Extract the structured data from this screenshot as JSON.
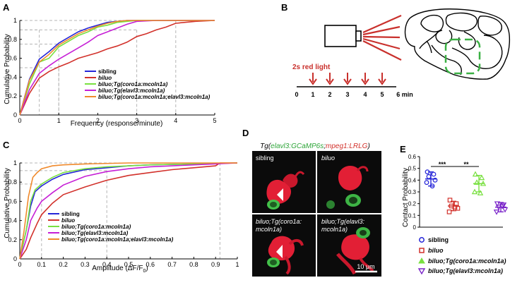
{
  "panels": {
    "A": "A",
    "B": "B",
    "C": "C",
    "D": "D",
    "E": "E"
  },
  "colors": {
    "sibling": "#2525d8",
    "biluo": "#d2312b",
    "coro": "#79e040",
    "elavl": "#c61fd6",
    "both": "#f08a2c",
    "violet": "#7a24c9"
  },
  "panelA": {
    "ylabel": "Cumulative Probability",
    "xlabel": "Frequency (response/minute)",
    "xticks": [
      "0",
      "1",
      "2",
      "3",
      "4",
      "5"
    ],
    "yticks": [
      "0",
      "0.2",
      "0.4",
      "0.6",
      "0.8",
      "1"
    ],
    "legend": [
      "sibling",
      "biluo",
      "biluo;Tg(coro1a:mcoln1a)",
      "biluo;Tg(elavl3:mcoln1a)",
      "biluo;Tg(coro1a:mcoln1a;elavl3:mcoln1a)"
    ]
  },
  "panelB": {
    "stim_label": "2s red light",
    "timeline": [
      "0",
      "1",
      "2",
      "3",
      "4",
      "5",
      "6 min"
    ]
  },
  "panelC": {
    "ylabel": "Cumulative Probability",
    "xlabel": "Amplitude (ΔF/F",
    "xlabel_sub": "0",
    "xlabel_end": ")",
    "xticks": [
      "0",
      "0.1",
      "0.2",
      "0.3",
      "0.4",
      "0.5",
      "0.6",
      "0.7",
      "0.8",
      "0.9",
      "1"
    ],
    "yticks": [
      "0",
      "0.2",
      "0.4",
      "0.6",
      "0.8",
      "1"
    ],
    "legend": [
      "sibling",
      "biluo",
      "biluo;Tg(coro1a:mcoln1a)",
      "biluo;Tg(elavl3:mcoln1a)",
      "biluo;Tg(coro1a:mcoln1a;elavl3:mcoln1a)"
    ]
  },
  "panelD": {
    "title_tg": "Tg(",
    "title_green": "elavl3:GCaMP6s",
    "title_sep": ";",
    "title_red": "mpeg1:LRLG",
    "title_end": ")",
    "cells": [
      "sibling",
      "biluo",
      "biluo;Tg(coro1a:\nmcoln1a)",
      "biluo;Tg(elavl3:\nmcoln1a)"
    ],
    "cell_lines": [
      [
        "sibling"
      ],
      [
        "biluo"
      ],
      [
        "biluo;Tg(coro1a:",
        "mcoln1a)"
      ],
      [
        "biluo;Tg(elavl3:",
        "mcoln1a)"
      ]
    ],
    "scalebar": "10 μm"
  },
  "panelE": {
    "ylabel": "Contact Probability",
    "yticks": [
      "0",
      "0.1",
      "0.2",
      "0.3",
      "0.4",
      "0.5",
      "0.6"
    ],
    "sig": [
      "***",
      "**"
    ],
    "legend": [
      "sibling",
      "biluo",
      "biluo;Tg(coro1a:mcoln1a)",
      "biluo;Tg(elavl3:mcoln1a)"
    ]
  },
  "chart_data": [
    {
      "type": "line",
      "title": "",
      "xlabel": "Frequency (response/minute)",
      "ylabel": "Cumulative Probability",
      "xlim": [
        0,
        5
      ],
      "ylim": [
        0,
        1
      ],
      "series": [
        {
          "name": "sibling",
          "x": [
            0,
            0.25,
            0.5,
            0.75,
            1,
            1.25,
            1.5,
            1.75,
            2,
            2.25,
            2.5,
            2.75,
            3,
            3.5,
            4,
            5
          ],
          "y": [
            0,
            0.38,
            0.59,
            0.67,
            0.76,
            0.82,
            0.88,
            0.92,
            0.95,
            0.98,
            0.99,
            1,
            1,
            1,
            1,
            1
          ]
        },
        {
          "name": "biluo",
          "x": [
            0,
            0.25,
            0.5,
            0.75,
            1,
            1.25,
            1.5,
            1.75,
            2,
            2.25,
            2.5,
            2.75,
            3,
            3.25,
            3.5,
            3.75,
            4,
            4.5,
            5
          ],
          "y": [
            0,
            0.23,
            0.39,
            0.46,
            0.51,
            0.55,
            0.6,
            0.63,
            0.66,
            0.7,
            0.73,
            0.77,
            0.83,
            0.86,
            0.9,
            0.93,
            0.97,
            0.99,
            1
          ]
        },
        {
          "name": "biluo;Tg(coro1a:mcoln1a)",
          "x": [
            0,
            0.25,
            0.5,
            0.75,
            1,
            1.25,
            1.5,
            1.75,
            2,
            2.25,
            2.5,
            2.75,
            3,
            3.5,
            5
          ],
          "y": [
            0,
            0.33,
            0.56,
            0.6,
            0.72,
            0.78,
            0.84,
            0.88,
            0.93,
            0.95,
            0.98,
            0.99,
            1,
            1,
            1
          ]
        },
        {
          "name": "biluo;Tg(elavl3:mcoln1a)",
          "x": [
            0,
            0.25,
            0.5,
            0.75,
            1,
            1.25,
            1.5,
            1.75,
            2,
            2.25,
            2.5,
            2.75,
            3,
            3.5,
            5
          ],
          "y": [
            0,
            0.27,
            0.44,
            0.52,
            0.59,
            0.65,
            0.71,
            0.77,
            0.84,
            0.88,
            0.92,
            0.96,
            0.99,
            1,
            1
          ]
        },
        {
          "name": "biluo;Tg(coro1a:mcoln1a;elavl3:mcoln1a)",
          "x": [
            0,
            0.25,
            0.5,
            0.75,
            1,
            1.25,
            1.5,
            1.75,
            2,
            2.25,
            2.5,
            2.75,
            3,
            3.5,
            5
          ],
          "y": [
            0,
            0.37,
            0.56,
            0.64,
            0.74,
            0.8,
            0.86,
            0.9,
            0.94,
            0.97,
            0.99,
            1,
            1,
            1,
            1
          ]
        }
      ]
    },
    {
      "type": "line",
      "title": "",
      "xlabel": "Amplitude (ΔF/F0)",
      "ylabel": "Cumulative Probability",
      "xlim": [
        0,
        1
      ],
      "ylim": [
        0,
        1
      ],
      "series": [
        {
          "name": "sibling",
          "x": [
            0,
            0.03,
            0.05,
            0.07,
            0.1,
            0.15,
            0.2,
            0.3,
            0.4,
            0.5,
            0.6,
            0.7,
            0.8,
            0.9,
            1
          ],
          "y": [
            0,
            0.3,
            0.55,
            0.7,
            0.76,
            0.83,
            0.88,
            0.93,
            0.95,
            0.97,
            0.98,
            0.985,
            0.99,
            0.995,
            1
          ]
        },
        {
          "name": "biluo",
          "x": [
            0,
            0.03,
            0.05,
            0.08,
            0.1,
            0.15,
            0.2,
            0.3,
            0.4,
            0.5,
            0.6,
            0.7,
            0.8,
            0.9,
            0.92,
            1
          ],
          "y": [
            0,
            0.1,
            0.22,
            0.37,
            0.46,
            0.58,
            0.67,
            0.75,
            0.82,
            0.87,
            0.9,
            0.93,
            0.95,
            0.97,
            1,
            1
          ]
        },
        {
          "name": "biluo;Tg(coro1a:mcoln1a)",
          "x": [
            0,
            0.03,
            0.05,
            0.07,
            0.1,
            0.15,
            0.2,
            0.3,
            0.4,
            0.5,
            0.6,
            0.8,
            1
          ],
          "y": [
            0,
            0.3,
            0.6,
            0.72,
            0.78,
            0.85,
            0.9,
            0.94,
            0.96,
            0.97,
            0.98,
            0.99,
            1
          ]
        },
        {
          "name": "biluo;Tg(elavl3:mcoln1a)",
          "x": [
            0,
            0.03,
            0.05,
            0.08,
            0.1,
            0.15,
            0.2,
            0.3,
            0.4,
            0.5,
            0.6,
            0.8,
            1
          ],
          "y": [
            0,
            0.2,
            0.4,
            0.53,
            0.6,
            0.69,
            0.77,
            0.86,
            0.91,
            0.94,
            0.96,
            0.98,
            1
          ]
        },
        {
          "name": "biluo;Tg(coro1a:mcoln1a;elavl3:mcoln1a)",
          "x": [
            0,
            0.02,
            0.04,
            0.06,
            0.08,
            0.1,
            0.15,
            0.2,
            0.3,
            0.5,
            0.7,
            1
          ],
          "y": [
            0,
            0.3,
            0.65,
            0.85,
            0.9,
            0.94,
            0.97,
            0.98,
            0.99,
            1,
            1,
            1
          ]
        }
      ]
    },
    {
      "type": "scatter",
      "title": "",
      "ylabel": "Contact Probability",
      "ylim": [
        0,
        0.6
      ],
      "categories": [
        "sibling",
        "biluo",
        "biluo;Tg(coro1a:mcoln1a)",
        "biluo;Tg(elavl3:mcoln1a)"
      ],
      "means": [
        0.41,
        0.18,
        0.37,
        0.17
      ],
      "sd": [
        0.06,
        0.04,
        0.07,
        0.04
      ],
      "points": [
        [
          0.47,
          0.45,
          0.43,
          0.4,
          0.38,
          0.35
        ],
        [
          0.23,
          0.2,
          0.18,
          0.16,
          0.13,
          0.17
        ],
        [
          0.45,
          0.42,
          0.38,
          0.37,
          0.3,
          0.29
        ],
        [
          0.2,
          0.19,
          0.17,
          0.15,
          0.13,
          0.18
        ]
      ]
    }
  ]
}
